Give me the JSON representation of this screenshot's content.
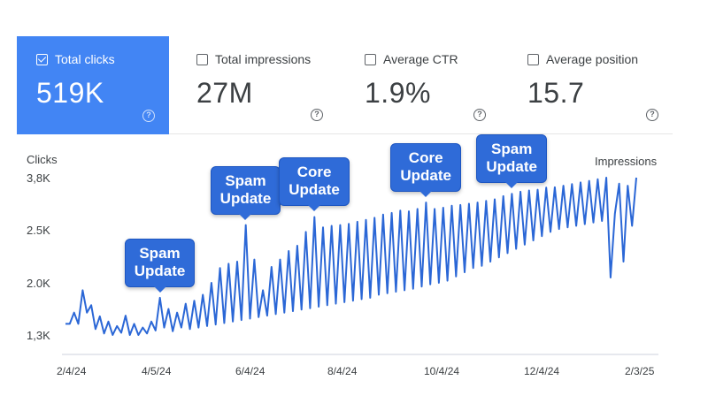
{
  "metrics": [
    {
      "label": "Total clicks",
      "value": "519K",
      "checked": true
    },
    {
      "label": "Total impressions",
      "value": "27M",
      "checked": false
    },
    {
      "label": "Average CTR",
      "value": "1.9%",
      "checked": false
    },
    {
      "label": "Average position",
      "value": "15.7",
      "checked": false
    }
  ],
  "help_glyph": "?",
  "chart_data": {
    "type": "line",
    "ylabel": "Clicks",
    "y2label": "Impressions",
    "yticks": [
      "3,8K",
      "2.5K",
      "2.0K",
      "1,3K"
    ],
    "ytick_values": [
      3800,
      2500,
      2000,
      1300
    ],
    "xticks": [
      "2/4/24",
      "4/5/24",
      "6/4/24",
      "8/4/24",
      "10/4/24",
      "12/4/24",
      "2/3/25"
    ],
    "color": "#2b67d6",
    "series": [
      {
        "values": [
          1450,
          1450,
          1600,
          1450,
          1900,
          1600,
          1700,
          1380,
          1550,
          1320,
          1480,
          1300,
          1420,
          1330,
          1560,
          1300,
          1450,
          1300,
          1400,
          1320,
          1480,
          1360,
          1800,
          1400,
          1650,
          1350,
          1600,
          1400,
          1720,
          1380,
          1760,
          1400,
          1840,
          1420,
          2000,
          1440,
          2140,
          1460,
          2180,
          1480,
          2200,
          1500,
          2620,
          1520,
          2220,
          1540,
          1900,
          1560,
          2150,
          1580,
          2220,
          1600,
          2300,
          1620,
          2350,
          1640,
          2480,
          1660,
          2820,
          1680,
          2560,
          1700,
          2600,
          1720,
          2620,
          1740,
          2650,
          1760,
          2700,
          1780,
          2750,
          1800,
          2800,
          1840,
          2880,
          1860,
          2920,
          1880,
          2980,
          1900,
          2960,
          1920,
          3020,
          1950,
          3180,
          1980,
          3020,
          2000,
          3050,
          2020,
          3100,
          2060,
          3120,
          2100,
          3150,
          2140,
          3180,
          2160,
          3220,
          2200,
          3260,
          2240,
          3340,
          2280,
          3400,
          2320,
          3450,
          2360,
          3480,
          2400,
          3500,
          2440,
          3550,
          2480,
          3560,
          2520,
          3600,
          2560,
          3640,
          2600,
          3680,
          2640,
          3720,
          2680,
          3760,
          2720,
          3800,
          2050,
          2900,
          3650,
          2200,
          3600,
          2600,
          3800
        ]
      }
    ],
    "annotations": [
      {
        "line1": "Spam",
        "line2": "Update",
        "index": 22
      },
      {
        "line1": "Spam",
        "line2": "Update",
        "index": 42
      },
      {
        "line1": "Core",
        "line2": "Update",
        "index": 58
      },
      {
        "line1": "Core",
        "line2": "Update",
        "index": 84
      },
      {
        "line1": "Spam",
        "line2": "Update",
        "index": 104
      }
    ]
  }
}
